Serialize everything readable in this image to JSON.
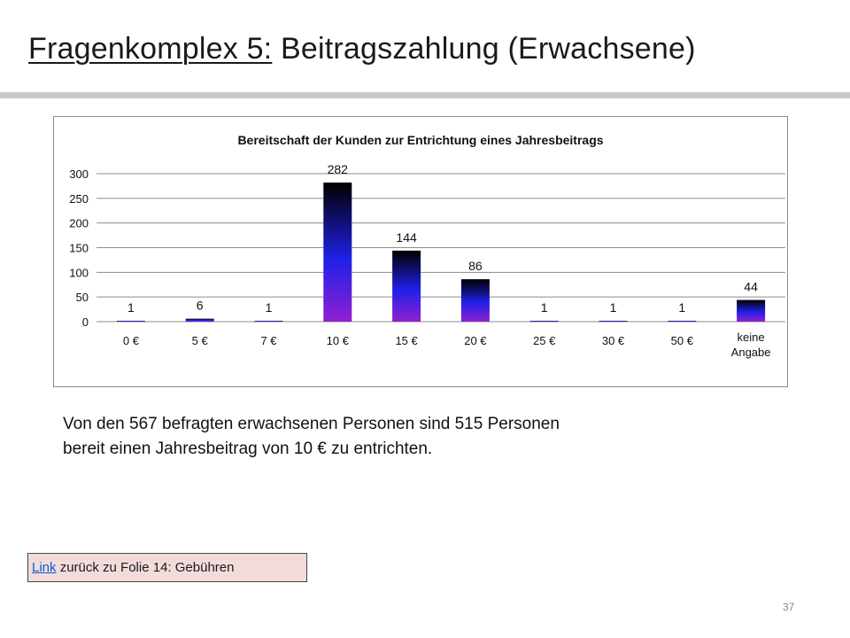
{
  "slide": {
    "title_prefix": "Fragenkomplex 5:",
    "title_rest": "Beitragszahlung (Erwachsene)",
    "body_line1": "Von den 567 befragten erwachsenen Personen sind 515  Personen",
    "body_line2": "bereit einen Jahresbeitrag von 10 € zu entrichten.",
    "link_text": "Link",
    "link_rest": " zurück zu Folie 14:  Gebühren",
    "page_number": "37"
  },
  "colors": {
    "bar_top": "#000000",
    "bar_mid": "#2020e8",
    "bar_bottom": "#9020d0",
    "gridline": "#8c8c8c",
    "link_box_bg": "#f2dcdb",
    "title_rule": "#c9c9c9"
  },
  "chart_data": {
    "type": "bar",
    "title": "Bereitschaft der Kunden zur Entrichtung eines Jahresbeitrags",
    "categories": [
      "0 €",
      "5 €",
      "7 €",
      "10 €",
      "15 €",
      "20 €",
      "25 €",
      "30 €",
      "50 €",
      "keine Angabe"
    ],
    "values": [
      1,
      6,
      1,
      282,
      144,
      86,
      1,
      1,
      1,
      44
    ],
    "ylim": [
      0,
      300
    ],
    "yticks": [
      0,
      50,
      100,
      150,
      200,
      250,
      300
    ],
    "grid": true,
    "legend": "none",
    "xlabel": "",
    "ylabel": ""
  }
}
